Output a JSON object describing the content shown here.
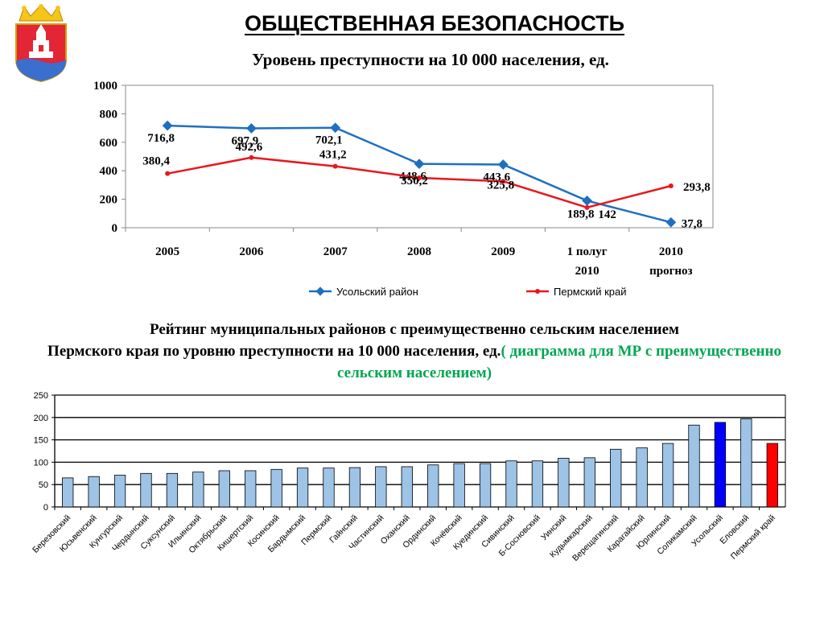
{
  "header": {
    "title": "ОБЩЕСТВЕННАЯ БЕЗОПАСНОСТЬ",
    "subtitle": "Уровень преступности на 10 000 населения, ед.",
    "rating_line1": "Рейтинг муниципальных районов с преимущественно сельским населением",
    "rating_line2": "Пермского края по уровню преступности на 10 000 населения, ед.",
    "rating_green": "( диаграмма для МР с преимущественно сельским населением)"
  },
  "colors": {
    "usolsky": "#1f6fc0",
    "perm": "#e8171c",
    "bar_default": "#9dc3e6",
    "bar_usolsky": "#0000ff",
    "bar_perm": "#ff0000",
    "green_text": "#00a651",
    "crest_red": "#e32636",
    "crest_gold": "#f5c518"
  },
  "crest": {
    "icon": "coat-of-arms-icon"
  },
  "chart_data": [
    {
      "type": "line",
      "title": "Уровень преступности на 10 000 населения, ед.",
      "categories": [
        "2005",
        "2006",
        "2007",
        "2008",
        "2009",
        "1 полуг 2010",
        "2010 прогноз"
      ],
      "series": [
        {
          "name": "Усольский  район",
          "values": [
            716.8,
            697.9,
            702.1,
            448.6,
            443.6,
            189.8,
            37.8
          ],
          "labels": [
            "716,8",
            "697,9",
            "702,1",
            "448,6",
            "443,6",
            "189,8",
            "37,8"
          ]
        },
        {
          "name": "Пермский край",
          "values": [
            380.4,
            492.6,
            431.2,
            350.2,
            325.8,
            142,
            293.8
          ],
          "labels": [
            "380,4",
            "492,6",
            "431,2",
            "350,2",
            "325,8",
            "142",
            "293,8"
          ]
        }
      ],
      "ylim": [
        0,
        1000
      ],
      "yticks": [
        "0",
        "200",
        "400",
        "600",
        "800",
        "1000"
      ],
      "grid": false,
      "legend": "bottom"
    },
    {
      "type": "bar",
      "categories": [
        "Березовский",
        "Юсьвенский",
        "Кунгурский",
        "Чердынский",
        "Суксунский",
        "Ильинский",
        "Октябрьский",
        "Кишертский",
        "Косинский",
        "Бардымский",
        "Пермский",
        "Гайнский",
        "Частинский",
        "Оханский",
        "Ординский",
        "Кочёвский",
        "Куединский",
        "Сивинский",
        "Б-Сосновский",
        "Уинский",
        "Кудымкарский",
        "Верещагинский",
        "Карагайский",
        "Юрлинский",
        "Соликамский",
        "Усольский",
        "Еловский",
        "Пермский край"
      ],
      "values": [
        65,
        68,
        71,
        75,
        75,
        78,
        81,
        81,
        84,
        87,
        87,
        88,
        90,
        90,
        94,
        97,
        97,
        103,
        103,
        109,
        110,
        129,
        132,
        142,
        183,
        189,
        197,
        142
      ],
      "highlight": {
        "Усольский": "usolsky",
        "Пермский край": "perm"
      },
      "ylim": [
        0,
        250
      ],
      "yticks": [
        "0",
        "50",
        "100",
        "150",
        "200",
        "250"
      ],
      "grid": true,
      "legend": "none"
    }
  ]
}
